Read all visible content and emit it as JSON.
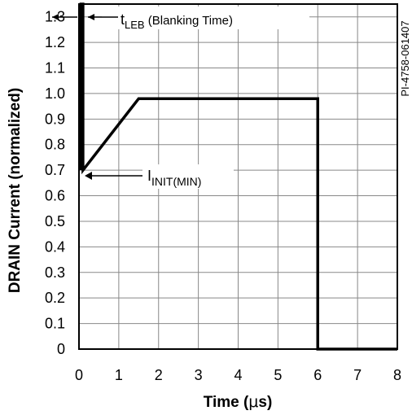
{
  "chart_data": {
    "type": "line",
    "xlabel_pre": "Time (",
    "xlabel_mu": "μ",
    "xlabel_post": "s)",
    "ylabel": "DRAIN Current (normalized)",
    "xlim": [
      0,
      8
    ],
    "ylim": [
      0,
      1.35
    ],
    "x_ticks": [
      0,
      1,
      2,
      3,
      4,
      5,
      6,
      7,
      8
    ],
    "x_tick_labels": [
      "0",
      "1",
      "2",
      "3",
      "4",
      "5",
      "6",
      "7",
      "8"
    ],
    "y_ticks": [
      0,
      0.1,
      0.2,
      0.3,
      0.4,
      0.5,
      0.6,
      0.7,
      0.8,
      0.9,
      1.0,
      1.1,
      1.2,
      1.3
    ],
    "y_tick_labels": [
      "0",
      "0.1",
      "0.2",
      "0.3",
      "0.4",
      "0.5",
      "0.6",
      "0.7",
      "0.8",
      "0.9",
      "1.0",
      "1.1",
      "1.2",
      "1.3"
    ],
    "grid": true,
    "series": [
      {
        "x": [
          0.05,
          0.05,
          0.1,
          0.1,
          1.5,
          6.0,
          6.0,
          8.0
        ],
        "y": [
          0.7,
          1.35,
          1.35,
          0.7,
          0.98,
          0.98,
          0,
          0
        ]
      }
    ],
    "annotations": {
      "leb_main": "t",
      "leb_sub": "LEB",
      "leb_rest": " (Blanking Time)",
      "init_main": "I",
      "init_sub": "INIT(MIN)"
    }
  },
  "figure_id": "PI-4758-061407"
}
